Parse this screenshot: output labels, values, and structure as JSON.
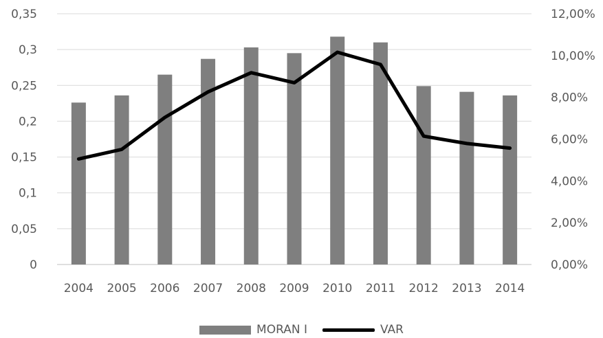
{
  "chart_data": {
    "type": "bar",
    "categories": [
      "2004",
      "2005",
      "2006",
      "2007",
      "2008",
      "2009",
      "2010",
      "2011",
      "2012",
      "2013",
      "2014"
    ],
    "series": [
      {
        "name": "MORAN I",
        "type": "bar",
        "axis": "left",
        "color": "#7f7f7f",
        "values": [
          0.226,
          0.236,
          0.265,
          0.287,
          0.303,
          0.295,
          0.318,
          0.31,
          0.249,
          0.241,
          0.236
        ]
      },
      {
        "name": "VAR",
        "type": "line",
        "axis": "right",
        "color": "#000000",
        "values": [
          0.0505,
          0.0551,
          0.0704,
          0.0826,
          0.0918,
          0.087,
          0.1016,
          0.0957,
          0.0614,
          0.0579,
          0.0557
        ]
      }
    ],
    "y_left": {
      "ylim": [
        0,
        0.35
      ],
      "ticks": [
        "0",
        "0,05",
        "0,1",
        "0,15",
        "0,2",
        "0,25",
        "0,3",
        "0,35"
      ]
    },
    "y_right": {
      "ylim": [
        0,
        0.12
      ],
      "ticks": [
        "0,00%",
        "2,00%",
        "4,00%",
        "6,00%",
        "8,00%",
        "10,00%",
        "12,00%"
      ]
    },
    "grid": true,
    "legend_position": "bottom",
    "title": "",
    "xlabel": "",
    "ylabel": ""
  },
  "legend": {
    "bar_label": "MORAN I",
    "line_label": "VAR"
  }
}
